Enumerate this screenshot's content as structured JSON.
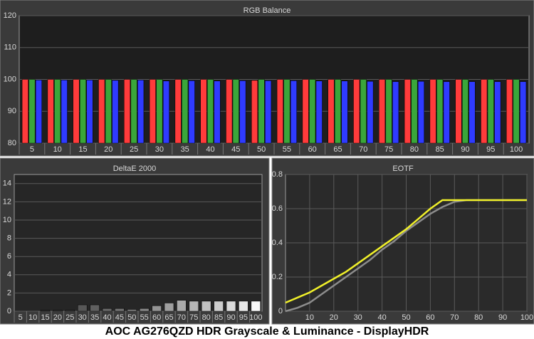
{
  "chart_data": [
    {
      "type": "bar",
      "title": "RGB Balance",
      "categories": [
        "5",
        "10",
        "15",
        "20",
        "25",
        "30",
        "35",
        "40",
        "45",
        "50",
        "55",
        "60",
        "65",
        "70",
        "75",
        "80",
        "85",
        "90",
        "95",
        "100"
      ],
      "series": [
        {
          "color": "#ff3b3b",
          "values": [
            100,
            100,
            100,
            100,
            100,
            100,
            100,
            100,
            100,
            99.7,
            100,
            100,
            100,
            100,
            100,
            100,
            100,
            100,
            100,
            100
          ]
        },
        {
          "color": "#3aa63a",
          "values": [
            100,
            100,
            100,
            100,
            100,
            100,
            100,
            100,
            100,
            100,
            100,
            100,
            100,
            100,
            100,
            100,
            100,
            100,
            100,
            100
          ]
        },
        {
          "color": "#2f3bff",
          "values": [
            99.8,
            99.8,
            99.8,
            99.7,
            99.8,
            99.5,
            99.6,
            99.5,
            99.6,
            99.6,
            99.6,
            99.5,
            99.5,
            99.4,
            99.3,
            99.4,
            99.3,
            99.3,
            99.3,
            99.3
          ]
        }
      ],
      "ylim": [
        80,
        120
      ],
      "yticks": [
        80,
        90,
        100,
        110,
        120
      ],
      "grid": true
    },
    {
      "type": "bar",
      "title": "DeltaE 2000",
      "categories": [
        "5",
        "10",
        "15",
        "20",
        "25",
        "30",
        "35",
        "40",
        "45",
        "50",
        "55",
        "60",
        "65",
        "70",
        "75",
        "80",
        "85",
        "90",
        "95",
        "100"
      ],
      "values": [
        0,
        0,
        0.1,
        0.1,
        0.1,
        0.7,
        0.7,
        0.3,
        0.3,
        0.2,
        0.3,
        0.6,
        0.9,
        1.2,
        1.1,
        1.1,
        1.1,
        1.1,
        1.1,
        1.1
      ],
      "colors": [
        "#2a2a2a",
        "#333",
        "#3c3c3c",
        "#454545",
        "#4e4e4e",
        "#575757",
        "#606060",
        "#6a6a6a",
        "#747474",
        "#7e7e7e",
        "#888",
        "#939393",
        "#9e9e9e",
        "#aaa",
        "#b6b6b6",
        "#c2c2c2",
        "#cecece",
        "#dadada",
        "#e8e8e8",
        "#f8f8f8"
      ],
      "ylim": [
        0,
        15
      ],
      "yticks": [
        0,
        2,
        4,
        6,
        8,
        10,
        12,
        14
      ],
      "grid": true
    },
    {
      "type": "line",
      "title": "EOTF",
      "x": [
        0,
        5,
        10,
        15,
        20,
        25,
        30,
        35,
        40,
        45,
        50,
        55,
        60,
        65,
        70,
        75,
        80,
        85,
        90,
        95,
        100
      ],
      "series": [
        {
          "color": "#8c8c8c",
          "values": [
            0,
            0.02,
            0.05,
            0.1,
            0.15,
            0.2,
            0.25,
            0.3,
            0.36,
            0.41,
            0.47,
            0.52,
            0.57,
            0.61,
            0.64,
            0.65,
            0.65,
            0.65,
            0.65,
            0.65,
            0.65
          ]
        },
        {
          "color": "#f0f02a",
          "values": [
            0.05,
            0.08,
            0.11,
            0.15,
            0.19,
            0.23,
            0.28,
            0.33,
            0.38,
            0.43,
            0.48,
            0.54,
            0.6,
            0.65,
            0.65,
            0.65,
            0.65,
            0.65,
            0.65,
            0.65,
            0.65
          ]
        }
      ],
      "xlim": [
        0,
        100
      ],
      "xticks": [
        10,
        20,
        30,
        40,
        50,
        60,
        70,
        80,
        90,
        100
      ],
      "ylim": [
        0,
        0.8
      ],
      "yticks": [
        0,
        0.2,
        0.4,
        0.6,
        0.8
      ],
      "grid": true
    }
  ],
  "caption": "AOC AG276QZD HDR Grayscale & Luminance - DisplayHDR"
}
